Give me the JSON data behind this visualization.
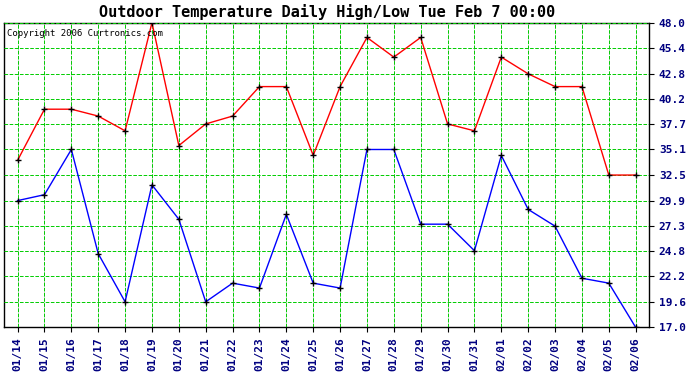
{
  "title": "Outdoor Temperature Daily High/Low Tue Feb 7 00:00",
  "copyright": "Copyright 2006 Curtronics.com",
  "x_labels": [
    "01/14",
    "01/15",
    "01/16",
    "01/17",
    "01/18",
    "01/19",
    "01/20",
    "01/21",
    "01/22",
    "01/23",
    "01/24",
    "01/25",
    "01/26",
    "01/27",
    "01/28",
    "01/29",
    "01/30",
    "01/31",
    "02/01",
    "02/02",
    "02/03",
    "02/04",
    "02/05",
    "02/06"
  ],
  "high_values": [
    34.0,
    39.2,
    39.2,
    38.5,
    37.0,
    48.0,
    35.5,
    37.7,
    38.5,
    41.5,
    41.5,
    34.5,
    41.5,
    46.5,
    44.5,
    46.5,
    37.7,
    37.0,
    44.5,
    42.8,
    41.5,
    41.5,
    32.5,
    32.5
  ],
  "low_values": [
    29.9,
    30.5,
    35.1,
    24.5,
    19.6,
    31.5,
    28.0,
    19.6,
    21.5,
    21.0,
    28.5,
    21.5,
    21.0,
    35.1,
    35.1,
    27.5,
    27.5,
    24.8,
    34.5,
    29.0,
    27.3,
    22.0,
    21.5,
    17.0
  ],
  "high_color": "#ff0000",
  "low_color": "#0000ff",
  "background_color": "#ffffff",
  "plot_bg_color": "#ffffff",
  "border_color": "#000000",
  "grid_color": "#00cc00",
  "y_ticks": [
    17.0,
    19.6,
    22.2,
    24.8,
    27.3,
    29.9,
    32.5,
    35.1,
    37.7,
    40.2,
    42.8,
    45.4,
    48.0
  ],
  "ymin": 17.0,
  "ymax": 48.0,
  "title_fontsize": 11,
  "tick_fontsize": 8
}
